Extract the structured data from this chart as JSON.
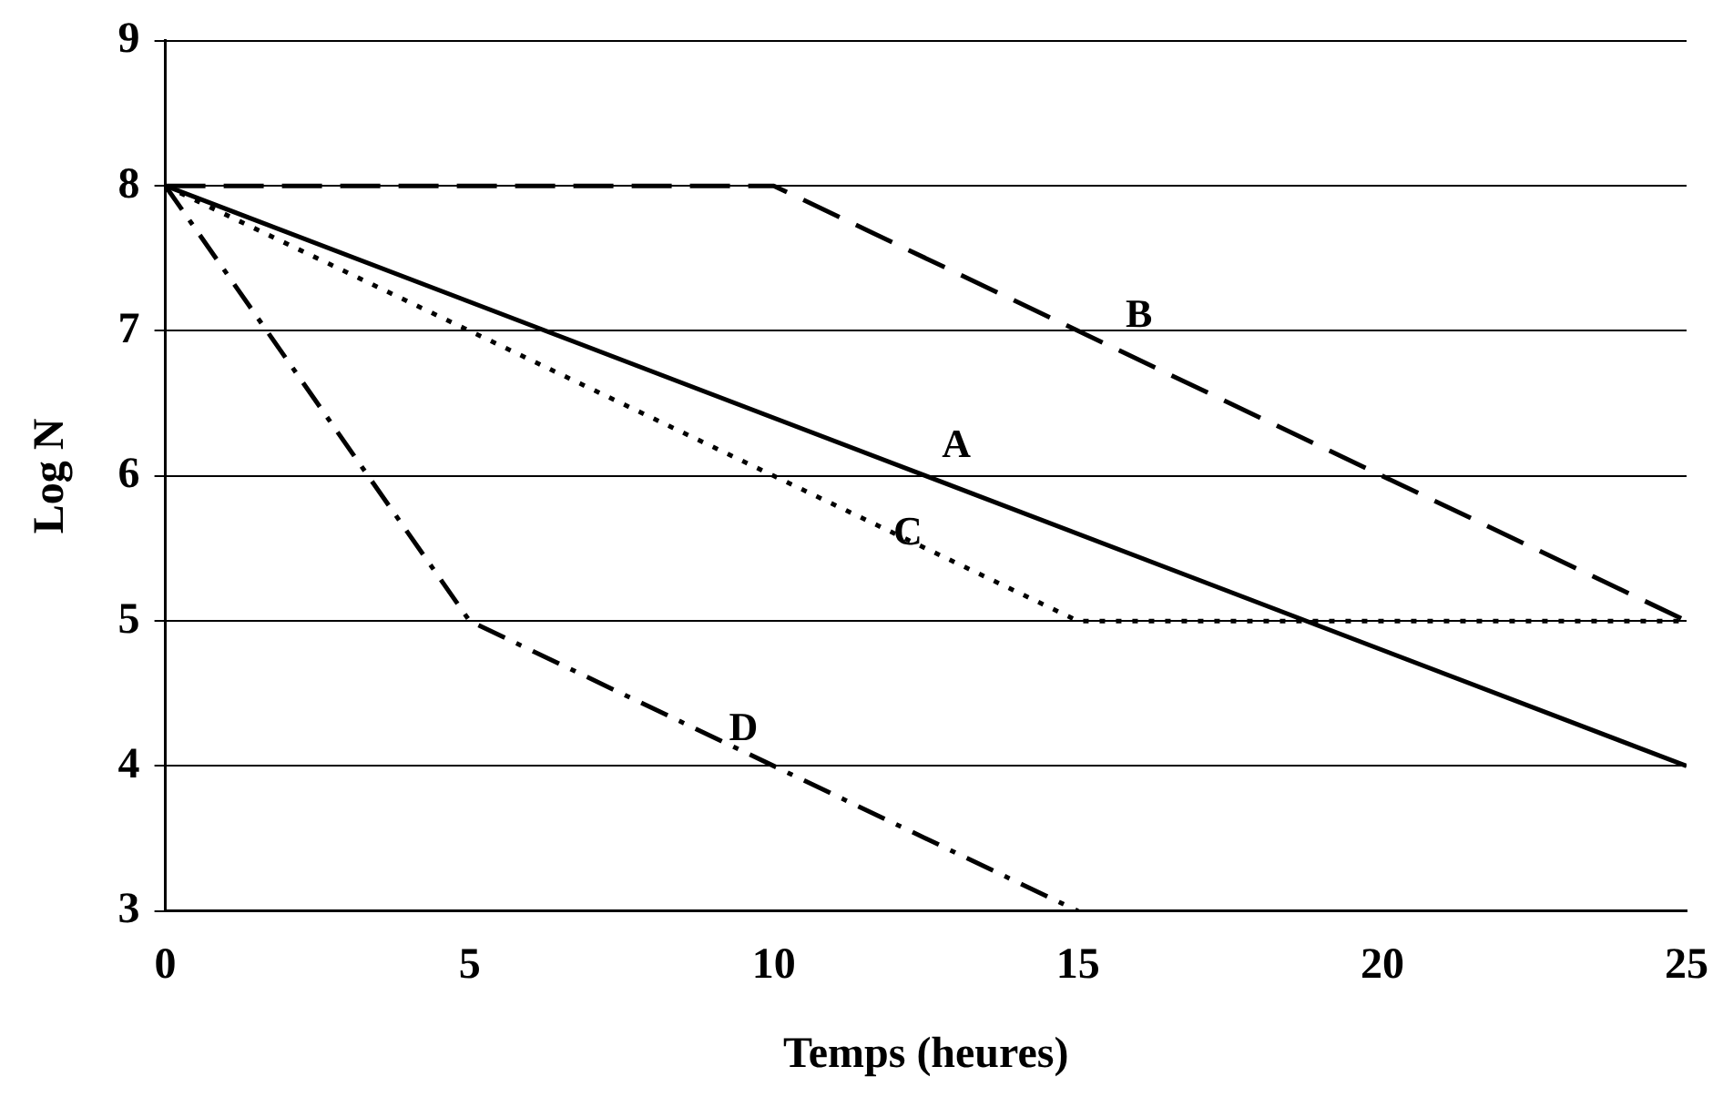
{
  "chart_data": {
    "type": "line",
    "xlabel": "Temps (heures)",
    "ylabel": "Log N",
    "xlim": [
      0,
      25
    ],
    "xticks": [
      0,
      5,
      10,
      15,
      20,
      25
    ],
    "ylim": [
      3,
      9
    ],
    "yticks": [
      3,
      4,
      5,
      6,
      7,
      8,
      9
    ],
    "grid": "y",
    "legend": false,
    "marker": "none",
    "series": [
      {
        "name": "A",
        "color": "#000000",
        "line_style": "solid",
        "x": [
          0,
          25
        ],
        "values": [
          8,
          4
        ]
      },
      {
        "name": "B",
        "color": "#000000",
        "line_style": "dashed",
        "x": [
          0,
          10,
          25
        ],
        "values": [
          8,
          8,
          5
        ]
      },
      {
        "name": "C",
        "color": "#000000",
        "line_style": "dotted",
        "x": [
          0,
          5,
          10,
          15,
          25
        ],
        "values": [
          8,
          7,
          6,
          5,
          5
        ]
      },
      {
        "name": "D",
        "color": "#000000",
        "line_style": "dashdot",
        "x": [
          0,
          5,
          15
        ],
        "values": [
          8,
          5,
          3
        ]
      }
    ]
  }
}
